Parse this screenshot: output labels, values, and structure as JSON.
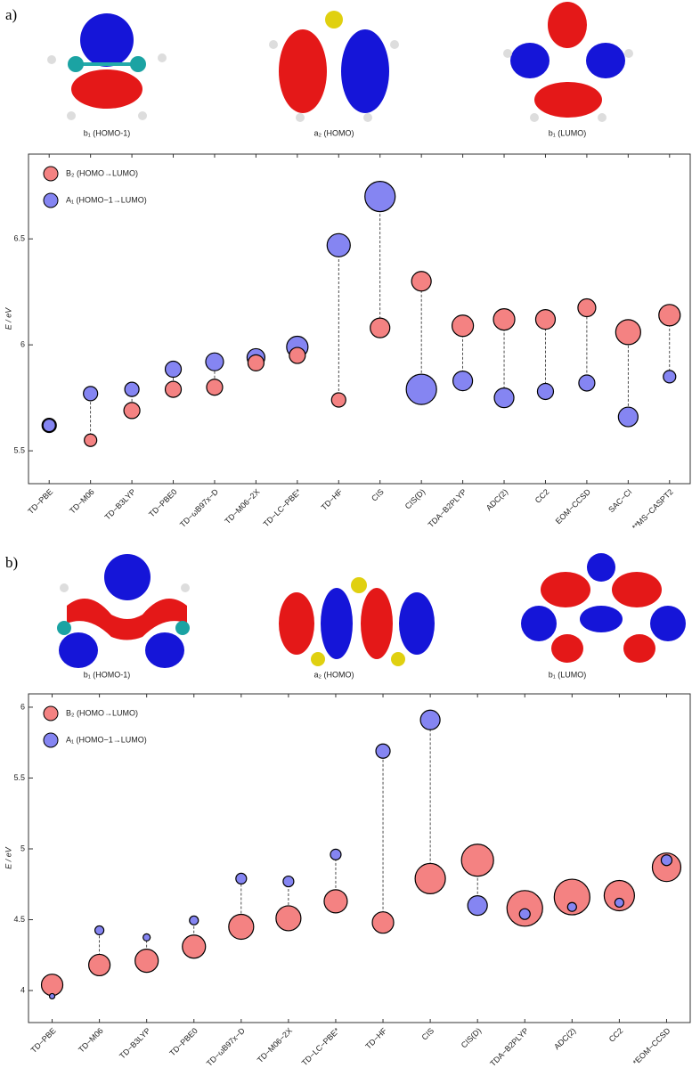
{
  "panels": [
    {
      "label": "a)",
      "orbitals": [
        "b₁ (HOMO-1)",
        "a₂ (HOMO)",
        "b₁ (LUMO)"
      ]
    },
    {
      "label": "b)",
      "orbitals": [
        "b₁ (HOMO-1)",
        "a₂ (HOMO)",
        "b₁ (LUMO)"
      ]
    }
  ],
  "chart_data": [
    {
      "type": "bubble",
      "ylabel": "E / eV",
      "legend": "upper left",
      "categories": [
        "TD−PBE",
        "TD−M06",
        "TD−B3LYP",
        "TD−PBE0",
        "TD−ωB97x−D",
        "TD−M06−2X",
        "TD−LC−PBE*",
        "TD−HF",
        "CIS",
        "CIS(D)",
        "TDA−B2PLYP",
        "ADC(2)",
        "CC2",
        "EOM−CCSD",
        "SAC−CI",
        "**MS−CASPT2"
      ],
      "series": [
        {
          "name": "B₂ (HOMO→LUMO)",
          "color": "#f48282",
          "values": [
            5.62,
            5.55,
            5.69,
            5.79,
            5.8,
            5.915,
            5.95,
            5.74,
            6.08,
            6.3,
            6.09,
            6.12,
            6.12,
            6.175,
            6.06,
            6.14
          ],
          "sizes": [
            8,
            7,
            9,
            9,
            9,
            9,
            9,
            8,
            11,
            11,
            12,
            12,
            11,
            10,
            14,
            12
          ]
        },
        {
          "name": "A₁ (HOMO−1→LUMO)",
          "color": "#8585f2",
          "values": [
            5.62,
            5.77,
            5.79,
            5.885,
            5.92,
            5.94,
            5.99,
            6.47,
            6.7,
            5.79,
            5.83,
            5.75,
            5.78,
            5.82,
            5.66,
            5.85
          ],
          "sizes": [
            7,
            8,
            8,
            9,
            10,
            10,
            12,
            13,
            17,
            17,
            11,
            11,
            9,
            9,
            11,
            7
          ]
        }
      ],
      "ylim": [
        5.345,
        6.9
      ],
      "yticks": [
        5.5,
        6,
        6.5
      ]
    },
    {
      "type": "bubble",
      "ylabel": "E / eV",
      "legend": "upper left",
      "categories": [
        "TD−PBE",
        "TD−M06",
        "TD−B3LYP",
        "TD−PBE0",
        "TD−ωB97x−D",
        "TD−M06−2X",
        "TD−LC−PBE*",
        "TD−HF",
        "CIS",
        "CIS(D)",
        "TDA−B2PLYP",
        "ADC(2)",
        "CC2",
        "*EOM−CCSD"
      ],
      "series": [
        {
          "name": "B₂ (HOMO→LUMO)",
          "color": "#f48282",
          "values": [
            4.04,
            4.18,
            4.21,
            4.31,
            4.45,
            4.51,
            4.63,
            4.48,
            4.79,
            4.92,
            4.58,
            4.66,
            4.67,
            4.87
          ],
          "sizes": [
            12,
            12,
            13,
            13,
            14,
            14,
            13,
            12,
            17,
            18,
            20,
            20,
            17,
            16
          ]
        },
        {
          "name": "A₁ (HOMO−1→LUMO)",
          "color": "#8585f2",
          "values": [
            3.96,
            4.425,
            4.375,
            4.495,
            4.79,
            4.77,
            4.96,
            5.69,
            5.91,
            4.6,
            4.54,
            4.59,
            4.62,
            4.92
          ],
          "sizes": [
            3,
            5,
            4,
            5,
            6,
            6,
            6,
            8,
            11,
            11,
            6,
            5,
            5,
            6
          ]
        }
      ],
      "ylim": [
        3.774,
        6.094
      ],
      "yticks": [
        4,
        4.5,
        5,
        5.5,
        6
      ]
    }
  ]
}
